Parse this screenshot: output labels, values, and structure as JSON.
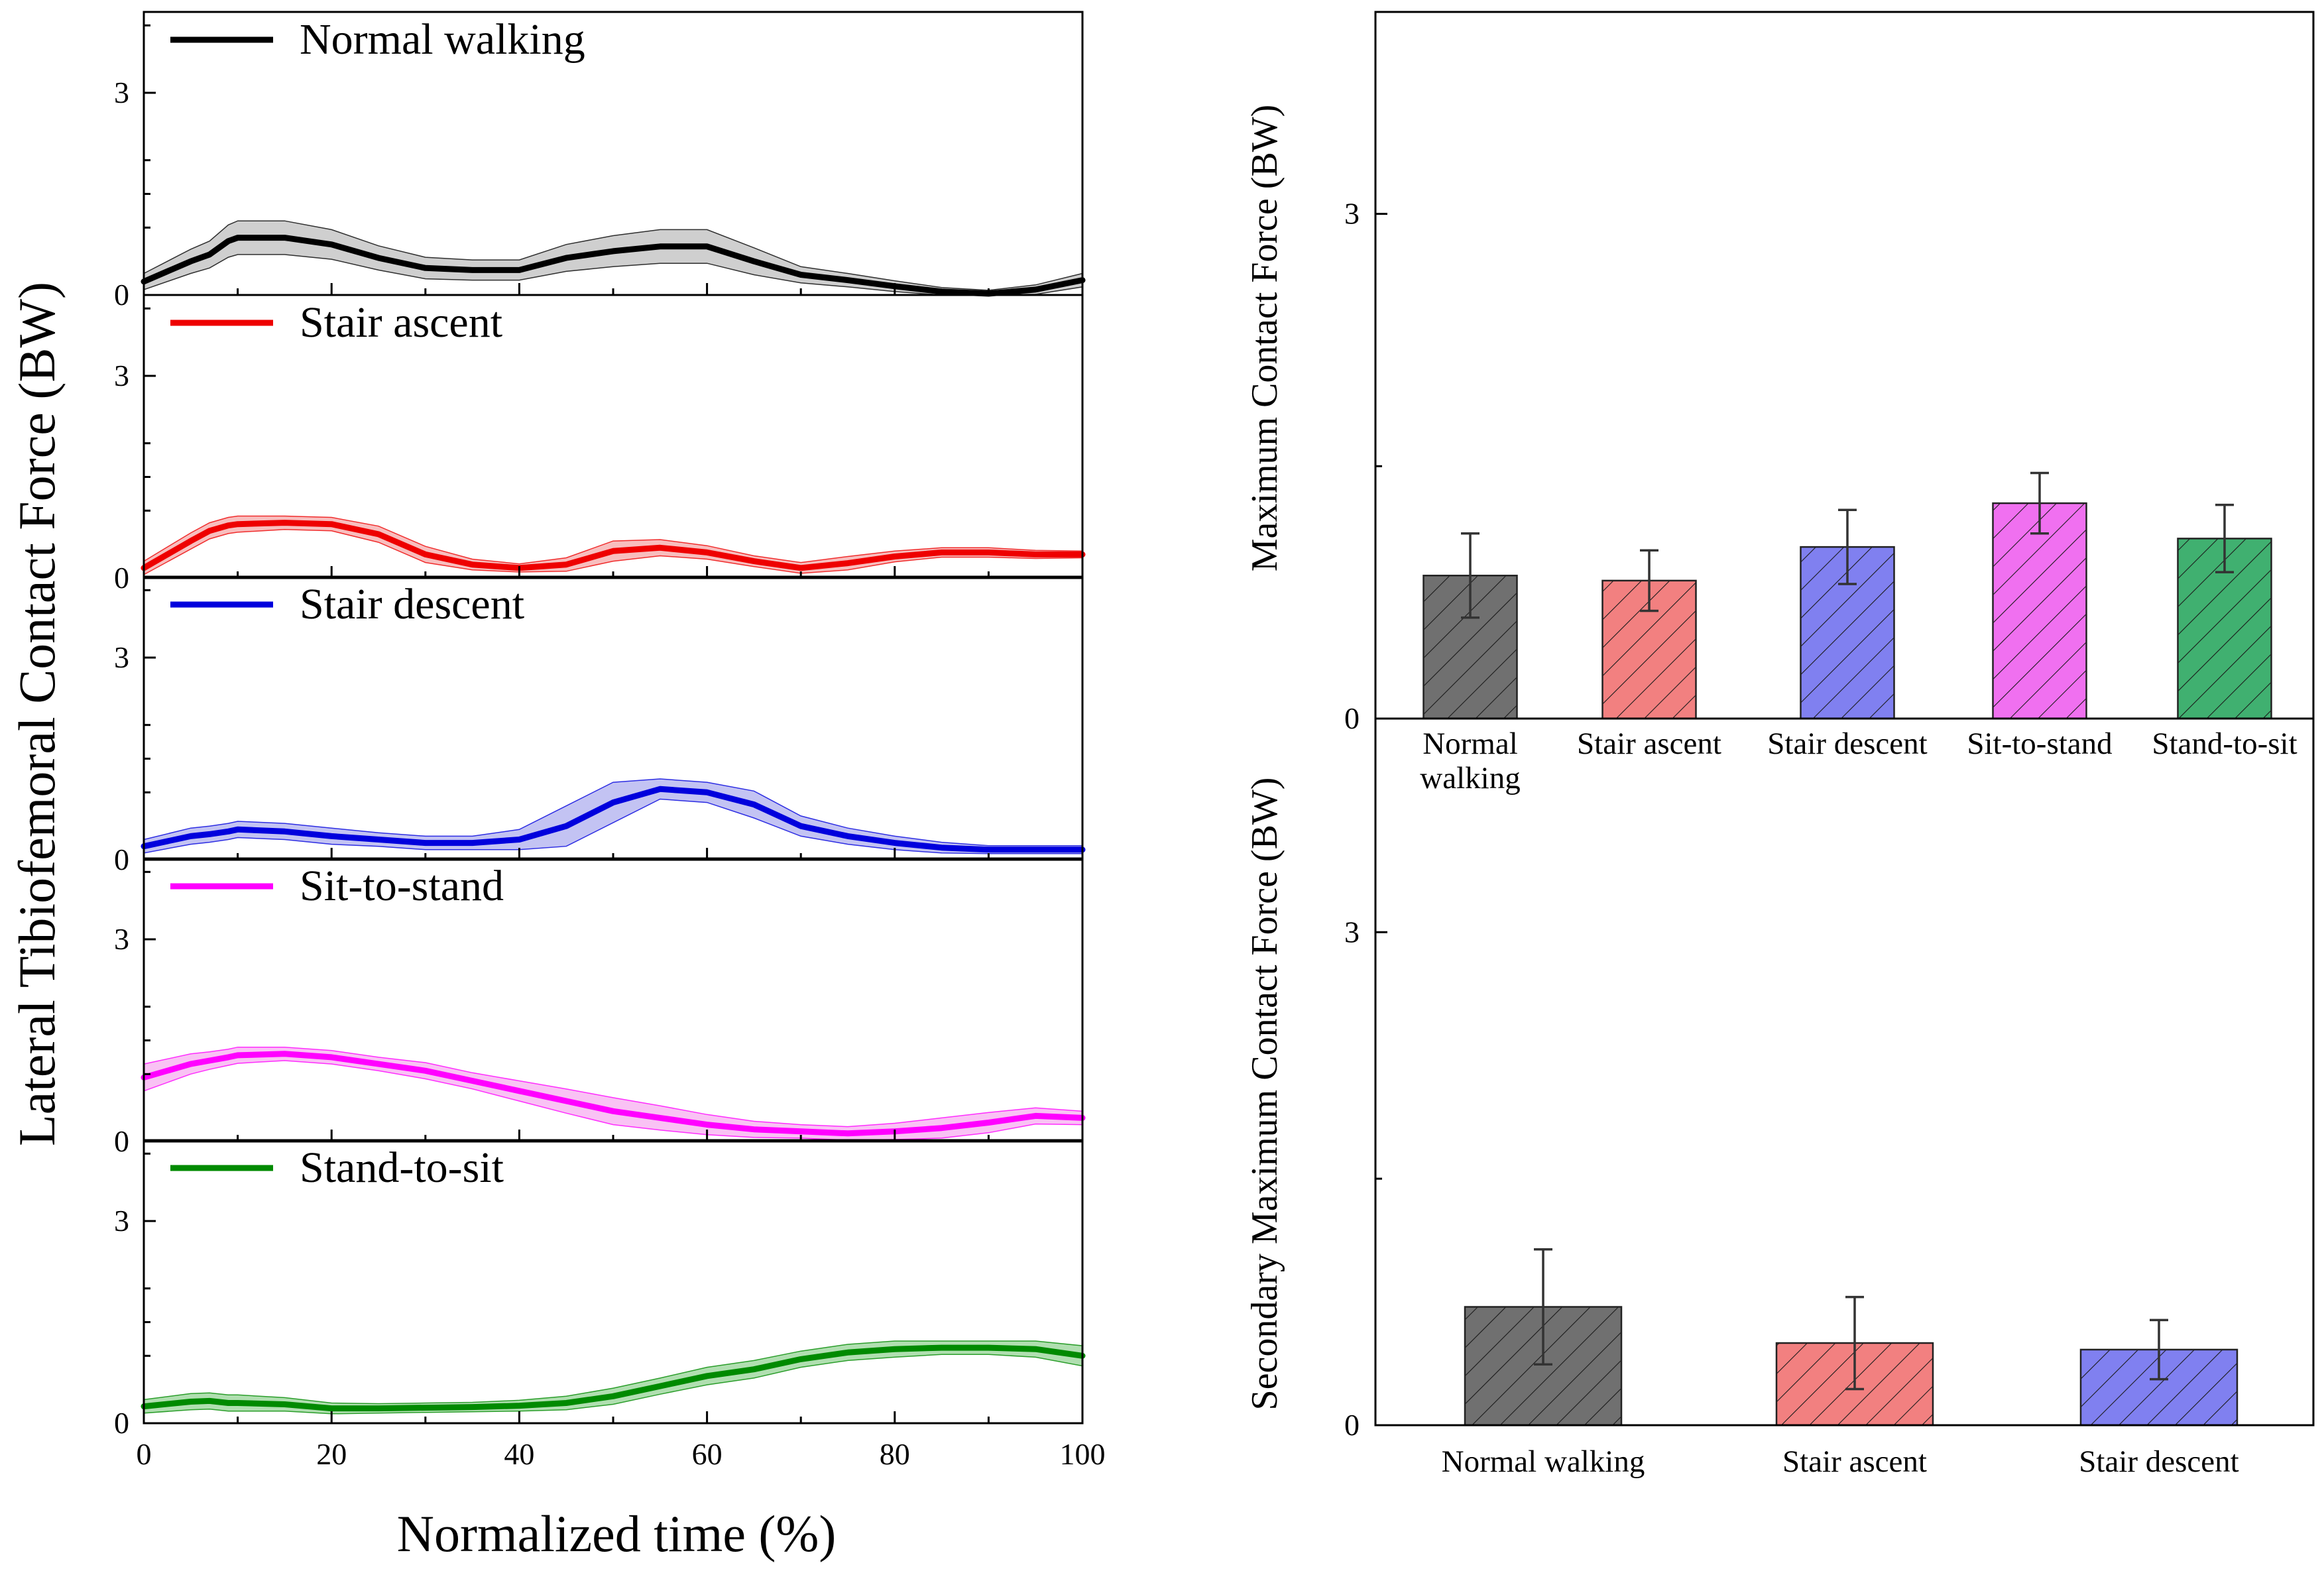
{
  "chart_data": [
    {
      "type": "line",
      "title": "",
      "ylabel": "Lateral Tibiofemoral Contact Force (BW)",
      "xlabel": "Normalized time (%)",
      "xlim": [
        0,
        100
      ],
      "xticks": [
        0,
        20,
        40,
        60,
        80,
        100
      ],
      "panel_ylim": [
        0,
        4.2
      ],
      "yticks": [
        0,
        3
      ],
      "legend_location": "top-left of each panel",
      "x": [
        0,
        5,
        7,
        9,
        10,
        15,
        20,
        25,
        30,
        35,
        40,
        45,
        50,
        55,
        60,
        65,
        70,
        75,
        80,
        85,
        90,
        95,
        100
      ],
      "series": [
        {
          "name": "Normal walking",
          "color": "#000000",
          "band_color": "#bbbbbb",
          "mean": [
            0.2,
            0.5,
            0.6,
            0.8,
            0.85,
            0.85,
            0.75,
            0.55,
            0.4,
            0.37,
            0.37,
            0.55,
            0.65,
            0.72,
            0.72,
            0.5,
            0.3,
            0.22,
            0.13,
            0.05,
            0.02,
            0.08,
            0.22
          ],
          "sd": [
            0.12,
            0.18,
            0.2,
            0.24,
            0.25,
            0.25,
            0.22,
            0.18,
            0.16,
            0.15,
            0.15,
            0.2,
            0.23,
            0.25,
            0.25,
            0.2,
            0.12,
            0.1,
            0.08,
            0.06,
            0.05,
            0.07,
            0.1
          ]
        },
        {
          "name": "Stair ascent",
          "color": "#ee0000",
          "band_color": "#f5a3a3",
          "mean": [
            0.15,
            0.55,
            0.7,
            0.78,
            0.8,
            0.82,
            0.8,
            0.65,
            0.35,
            0.2,
            0.15,
            0.2,
            0.4,
            0.45,
            0.38,
            0.25,
            0.15,
            0.22,
            0.32,
            0.38,
            0.38,
            0.35,
            0.35
          ],
          "sd": [
            0.1,
            0.12,
            0.12,
            0.12,
            0.12,
            0.1,
            0.1,
            0.12,
            0.12,
            0.08,
            0.06,
            0.1,
            0.15,
            0.12,
            0.1,
            0.08,
            0.08,
            0.1,
            0.08,
            0.07,
            0.07,
            0.06,
            0.05
          ]
        },
        {
          "name": "Stair descent",
          "color": "#0000dd",
          "band_color": "#aaaaee",
          "mean": [
            0.2,
            0.35,
            0.38,
            0.42,
            0.45,
            0.42,
            0.35,
            0.3,
            0.25,
            0.25,
            0.3,
            0.5,
            0.85,
            1.05,
            1.0,
            0.82,
            0.5,
            0.35,
            0.25,
            0.18,
            0.15,
            0.15,
            0.15
          ],
          "sd": [
            0.1,
            0.12,
            0.12,
            0.12,
            0.12,
            0.12,
            0.12,
            0.1,
            0.1,
            0.1,
            0.15,
            0.3,
            0.3,
            0.15,
            0.15,
            0.2,
            0.15,
            0.12,
            0.1,
            0.08,
            0.06,
            0.06,
            0.06
          ]
        },
        {
          "name": "Sit-to-stand",
          "color": "#ff00ff",
          "band_color": "#f7a8f0",
          "mean": [
            0.95,
            1.15,
            1.2,
            1.25,
            1.28,
            1.3,
            1.25,
            1.15,
            1.05,
            0.9,
            0.75,
            0.6,
            0.45,
            0.35,
            0.25,
            0.18,
            0.15,
            0.12,
            0.15,
            0.2,
            0.28,
            0.38,
            0.35
          ],
          "sd": [
            0.2,
            0.15,
            0.13,
            0.12,
            0.12,
            0.1,
            0.1,
            0.1,
            0.12,
            0.12,
            0.15,
            0.18,
            0.2,
            0.18,
            0.15,
            0.12,
            0.1,
            0.1,
            0.12,
            0.15,
            0.15,
            0.12,
            0.1
          ]
        },
        {
          "name": "Stand-to-sit",
          "color": "#008a00",
          "band_color": "#8fd18f",
          "mean": [
            0.25,
            0.32,
            0.33,
            0.3,
            0.3,
            0.28,
            0.22,
            0.22,
            0.23,
            0.24,
            0.26,
            0.3,
            0.4,
            0.55,
            0.7,
            0.8,
            0.95,
            1.05,
            1.1,
            1.12,
            1.12,
            1.1,
            1.0
          ],
          "sd": [
            0.1,
            0.12,
            0.12,
            0.12,
            0.12,
            0.1,
            0.08,
            0.07,
            0.07,
            0.07,
            0.08,
            0.1,
            0.12,
            0.12,
            0.13,
            0.13,
            0.12,
            0.12,
            0.12,
            0.1,
            0.1,
            0.12,
            0.15
          ]
        }
      ]
    },
    {
      "type": "bar",
      "ylabel": "Maximum Contact Force (BW)",
      "ylim": [
        0,
        4.2
      ],
      "yticks": [
        0,
        3
      ],
      "categories": [
        "Normal\nwalking",
        "Stair ascent",
        "Stair descent",
        "Sit-to-stand",
        "Stand-to-sit"
      ],
      "values": [
        0.85,
        0.82,
        1.02,
        1.28,
        1.07
      ],
      "errors": [
        0.25,
        0.18,
        0.22,
        0.18,
        0.2
      ],
      "colors": [
        "#707070",
        "#f28080",
        "#8080f0",
        "#f070f0",
        "#40b070"
      ],
      "hatch": "diagonal"
    },
    {
      "type": "bar",
      "ylabel": "Secondary Maximum Contact Force (BW)",
      "ylim": [
        0,
        4.3
      ],
      "yticks": [
        0,
        3
      ],
      "categories": [
        "Normal walking",
        "Stair ascent",
        "Stair descent"
      ],
      "values": [
        0.72,
        0.5,
        0.46
      ],
      "errors": [
        0.35,
        0.28,
        0.18
      ],
      "colors": [
        "#707070",
        "#f28080",
        "#8080f0"
      ],
      "hatch": "diagonal"
    }
  ]
}
